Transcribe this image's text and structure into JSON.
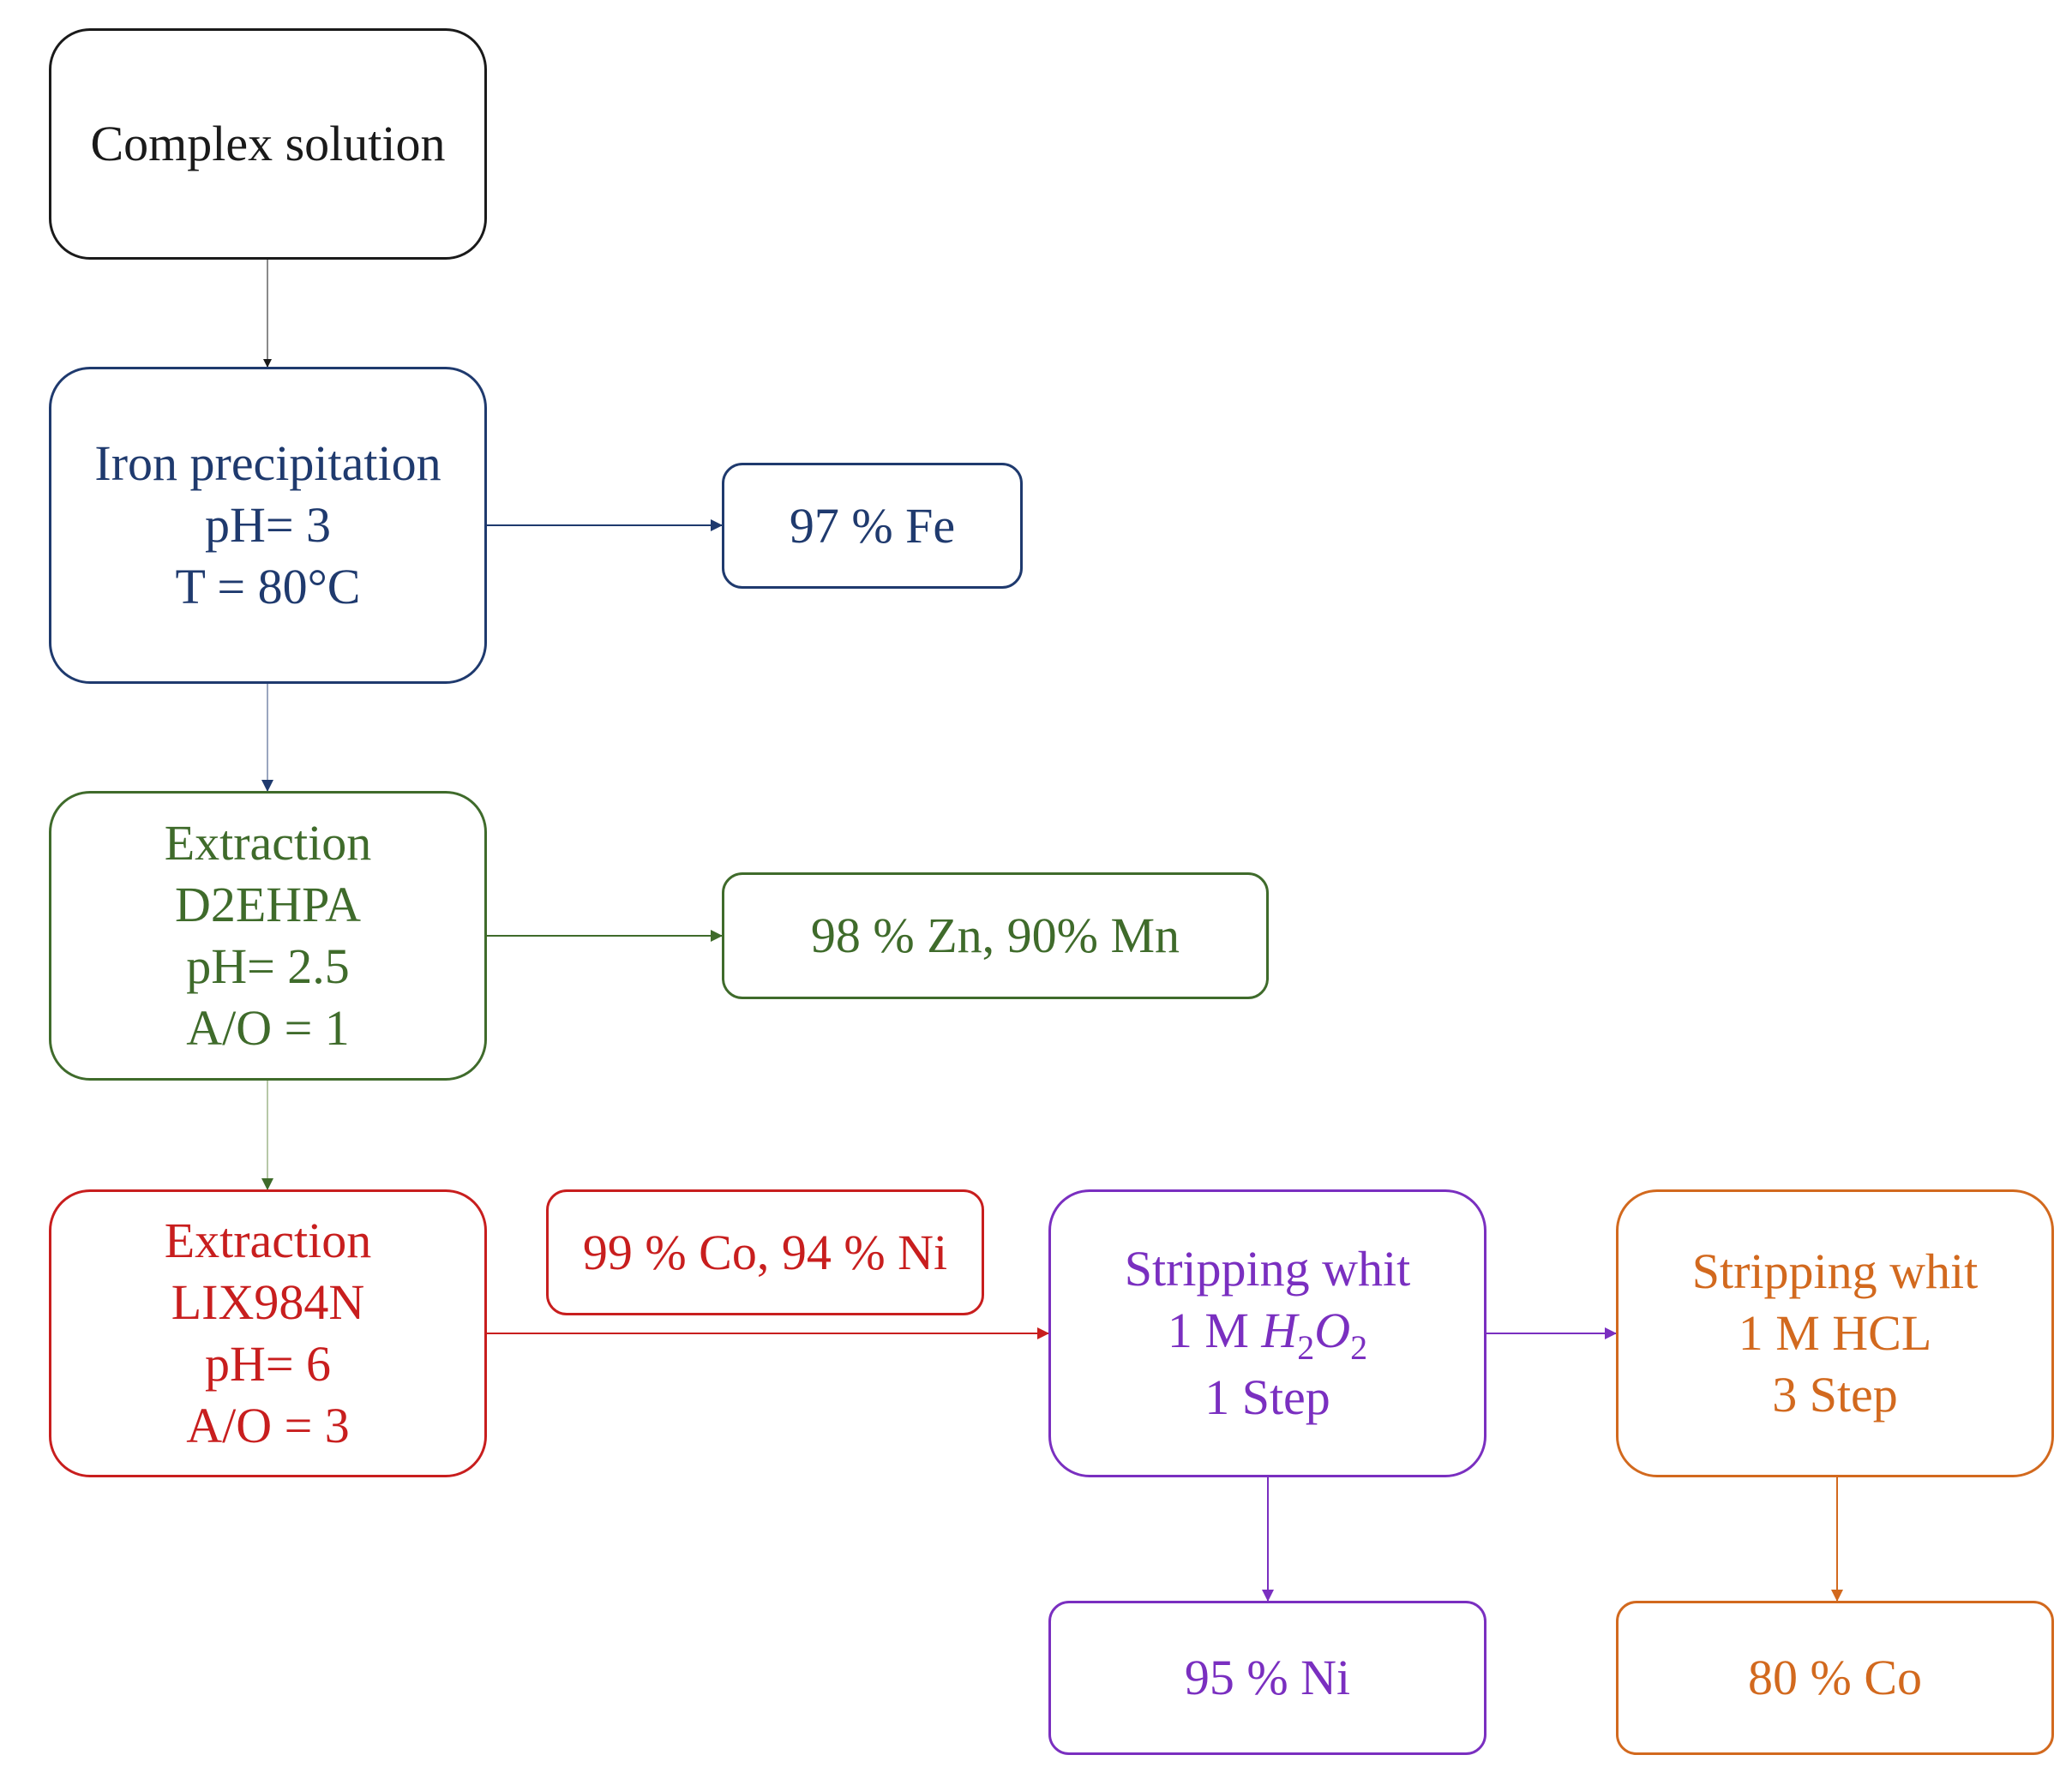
{
  "colors": {
    "black": "#1a1a1a",
    "navy": "#1f3a6e",
    "green": "#3f6b2b",
    "red": "#c81e1e",
    "purple": "#7a2fc0",
    "orange": "#d2691e"
  },
  "nodes": {
    "complex_solution": {
      "lines": [
        "Complex solution"
      ]
    },
    "iron_precipitation": {
      "lines": [
        "Iron precipitation",
        "pH= 3",
        "T = 80°C"
      ]
    },
    "fe_result": {
      "lines": [
        "97 % Fe"
      ]
    },
    "extraction_d2ehpa": {
      "lines": [
        "Extraction",
        "D2EHPA",
        "pH= 2.5",
        "A/O = 1"
      ]
    },
    "zn_mn_result": {
      "lines": [
        "98 % Zn, 90% Mn"
      ]
    },
    "extraction_lix": {
      "lines": [
        "Extraction",
        "LIX984N",
        "pH= 6",
        "A/O = 3"
      ]
    },
    "co_ni_result": {
      "lines": [
        "99 % Co, 94 % Ni"
      ]
    },
    "stripping_h2o2": {
      "line1": "Stripping whit",
      "line2_prefix": "1 M ",
      "formula_a": "H",
      "formula_a_sub": "2",
      "formula_b": "O",
      "formula_b_sub": "2",
      "line3": "1 Step"
    },
    "stripping_hcl": {
      "lines": [
        "Stripping whit",
        "1 M HCL",
        "3 Step"
      ]
    },
    "ni_result": {
      "lines": [
        "95 % Ni"
      ]
    },
    "co_result": {
      "lines": [
        "80 % Co"
      ]
    }
  }
}
